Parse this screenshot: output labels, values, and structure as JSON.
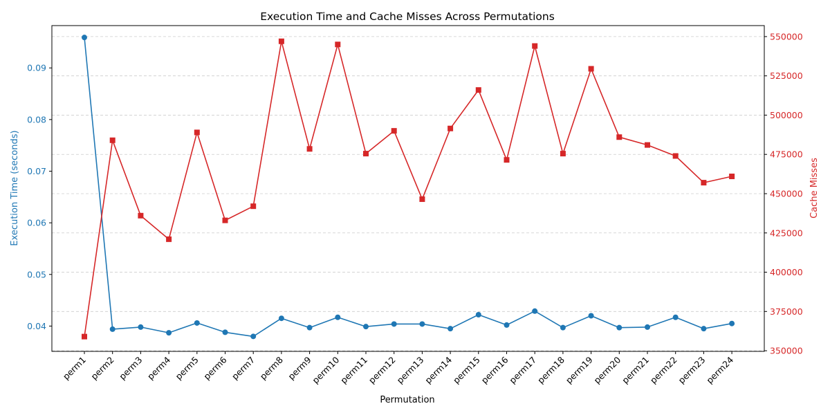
{
  "chart_data": {
    "type": "line",
    "title": "Execution Time and Cache Misses Across Permutations",
    "xlabel": "Permutation",
    "categories": [
      "perm1",
      "perm2",
      "perm3",
      "perm4",
      "perm5",
      "perm6",
      "perm7",
      "perm8",
      "perm9",
      "perm10",
      "perm11",
      "perm12",
      "perm13",
      "perm14",
      "perm15",
      "perm16",
      "perm17",
      "perm18",
      "perm19",
      "perm20",
      "perm21",
      "perm22",
      "perm23",
      "perm24"
    ],
    "grid": true,
    "series": [
      {
        "axis": "left",
        "color": "#1f77b4",
        "marker": "circle",
        "values": [
          0.0959,
          0.0394,
          0.0398,
          0.0387,
          0.0406,
          0.0388,
          0.038,
          0.0415,
          0.0397,
          0.0417,
          0.0399,
          0.0404,
          0.0404,
          0.0395,
          0.0422,
          0.0402,
          0.0429,
          0.0397,
          0.042,
          0.0397,
          0.0398,
          0.0417,
          0.0395,
          0.0405
        ]
      },
      {
        "axis": "right",
        "color": "#d62728",
        "marker": "square",
        "values": [
          359000,
          484000,
          436000,
          421000,
          489000,
          433000,
          442000,
          547000,
          478500,
          545000,
          475500,
          490000,
          446500,
          491500,
          516000,
          471500,
          544000,
          475500,
          529500,
          486000,
          481000,
          474000,
          457000,
          461000
        ]
      }
    ],
    "y_left": {
      "label": "Execution Time (seconds)",
      "color": "#1f77b4",
      "lim": [
        0.0351,
        0.0982
      ],
      "ticks": [
        0.04,
        0.05,
        0.06,
        0.07,
        0.08,
        0.09
      ],
      "tick_labels": [
        "0.04",
        "0.05",
        "0.06",
        "0.07",
        "0.08",
        "0.09"
      ]
    },
    "y_right": {
      "label": "Cache Misses",
      "color": "#d62728",
      "lim": [
        349600,
        557000
      ],
      "ticks": [
        350000,
        375000,
        400000,
        425000,
        450000,
        475000,
        500000,
        525000,
        550000
      ],
      "tick_labels": [
        "350000",
        "375000",
        "400000",
        "425000",
        "450000",
        "475000",
        "500000",
        "525000",
        "550000"
      ]
    }
  }
}
